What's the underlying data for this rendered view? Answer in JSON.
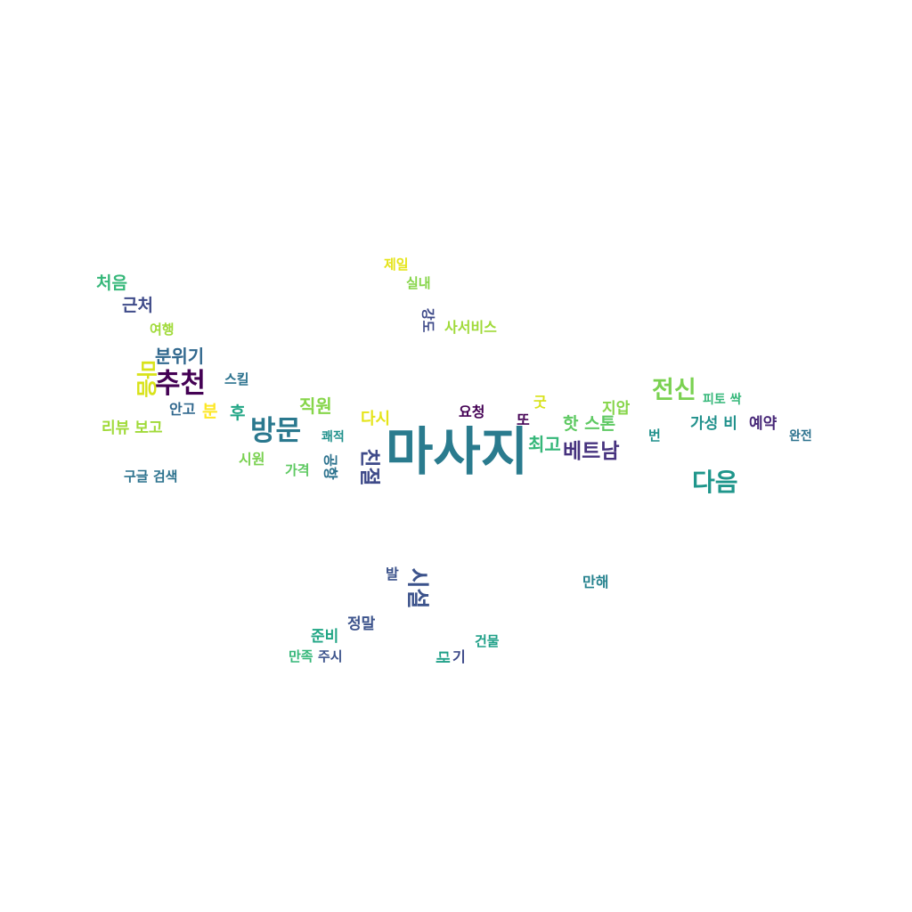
{
  "words": [
    {
      "text": "마사지",
      "color": "#2a7b8e",
      "rotated": false
    },
    {
      "text": "추천",
      "color": "#440154",
      "rotated": false
    },
    {
      "text": "방문",
      "color": "#2a788e",
      "rotated": false
    },
    {
      "text": "다음",
      "color": "#1f968b",
      "rotated": false
    },
    {
      "text": "전신",
      "color": "#7ad151",
      "rotated": false
    },
    {
      "text": "시설",
      "color": "#3b528b",
      "rotated": true
    },
    {
      "text": "베트남",
      "color": "#46327e",
      "rotated": false
    },
    {
      "text": "친절",
      "color": "#3e4a89",
      "rotated": true
    },
    {
      "text": "분위기",
      "color": "#31688e",
      "rotated": false
    },
    {
      "text": "마음",
      "color": "#d8e219",
      "rotated": true
    },
    {
      "text": "직원",
      "color": "#86d549",
      "rotated": false
    },
    {
      "text": "최고",
      "color": "#35b779",
      "rotated": false
    },
    {
      "text": "처음",
      "color": "#35b779",
      "rotated": false
    },
    {
      "text": "근처",
      "color": "#3e4a89",
      "rotated": false
    },
    {
      "text": "핫 스톤",
      "color": "#5ec962",
      "rotated": false
    },
    {
      "text": "분",
      "color": "#fde725",
      "rotated": false
    },
    {
      "text": "후",
      "color": "#21a685",
      "rotated": false
    },
    {
      "text": "다시",
      "color": "#e5e419",
      "rotated": false
    },
    {
      "text": "리뷰 보고",
      "color": "#a0da39",
      "rotated": false
    },
    {
      "text": "가성 비",
      "color": "#21918c",
      "rotated": false
    },
    {
      "text": "예약",
      "color": "#482878",
      "rotated": false
    },
    {
      "text": "정말",
      "color": "#3b528b",
      "rotated": false
    },
    {
      "text": "준비",
      "color": "#21a685",
      "rotated": false
    },
    {
      "text": "지압",
      "color": "#86d549",
      "rotated": false
    },
    {
      "text": "시원",
      "color": "#7ad151",
      "rotated": false
    },
    {
      "text": "요청",
      "color": "#440154",
      "rotated": false
    },
    {
      "text": "또",
      "color": "#440154",
      "rotated": false
    },
    {
      "text": "굿",
      "color": "#d8e219",
      "rotated": false
    },
    {
      "text": "만해",
      "color": "#26828e",
      "rotated": false
    },
    {
      "text": "안고",
      "color": "#31688e",
      "rotated": false
    },
    {
      "text": "사서비스",
      "color": "#a0da39",
      "rotated": false
    },
    {
      "text": "제일",
      "color": "#e5e419",
      "rotated": false
    },
    {
      "text": "실내",
      "color": "#86d549",
      "rotated": false
    },
    {
      "text": "여행",
      "color": "#a0da39",
      "rotated": false
    },
    {
      "text": "강도",
      "color": "#3e4a89",
      "rotated": true
    },
    {
      "text": "스킬",
      "color": "#2c728e",
      "rotated": false
    },
    {
      "text": "가격",
      "color": "#5ec962",
      "rotated": false
    },
    {
      "text": "공항",
      "color": "#2c728e",
      "rotated": true
    },
    {
      "text": "쾌적",
      "color": "#21918c",
      "rotated": false
    },
    {
      "text": "구글 검색",
      "color": "#2c728e",
      "rotated": false
    },
    {
      "text": "피토 싹",
      "color": "#35b779",
      "rotated": false
    },
    {
      "text": "번",
      "color": "#21918c",
      "rotated": false
    },
    {
      "text": "완전",
      "color": "#2c728e",
      "rotated": false
    },
    {
      "text": "발",
      "color": "#3b528b",
      "rotated": false
    },
    {
      "text": "건물",
      "color": "#1fa088",
      "rotated": false
    },
    {
      "text": "만족",
      "color": "#35b779",
      "rotated": false
    },
    {
      "text": "주시",
      "color": "#3b528b",
      "rotated": false
    },
    {
      "text": "기",
      "color": "#3e4a89",
      "rotated": false
    },
    {
      "text": "대",
      "color": "#1fa088",
      "rotated": true
    }
  ]
}
